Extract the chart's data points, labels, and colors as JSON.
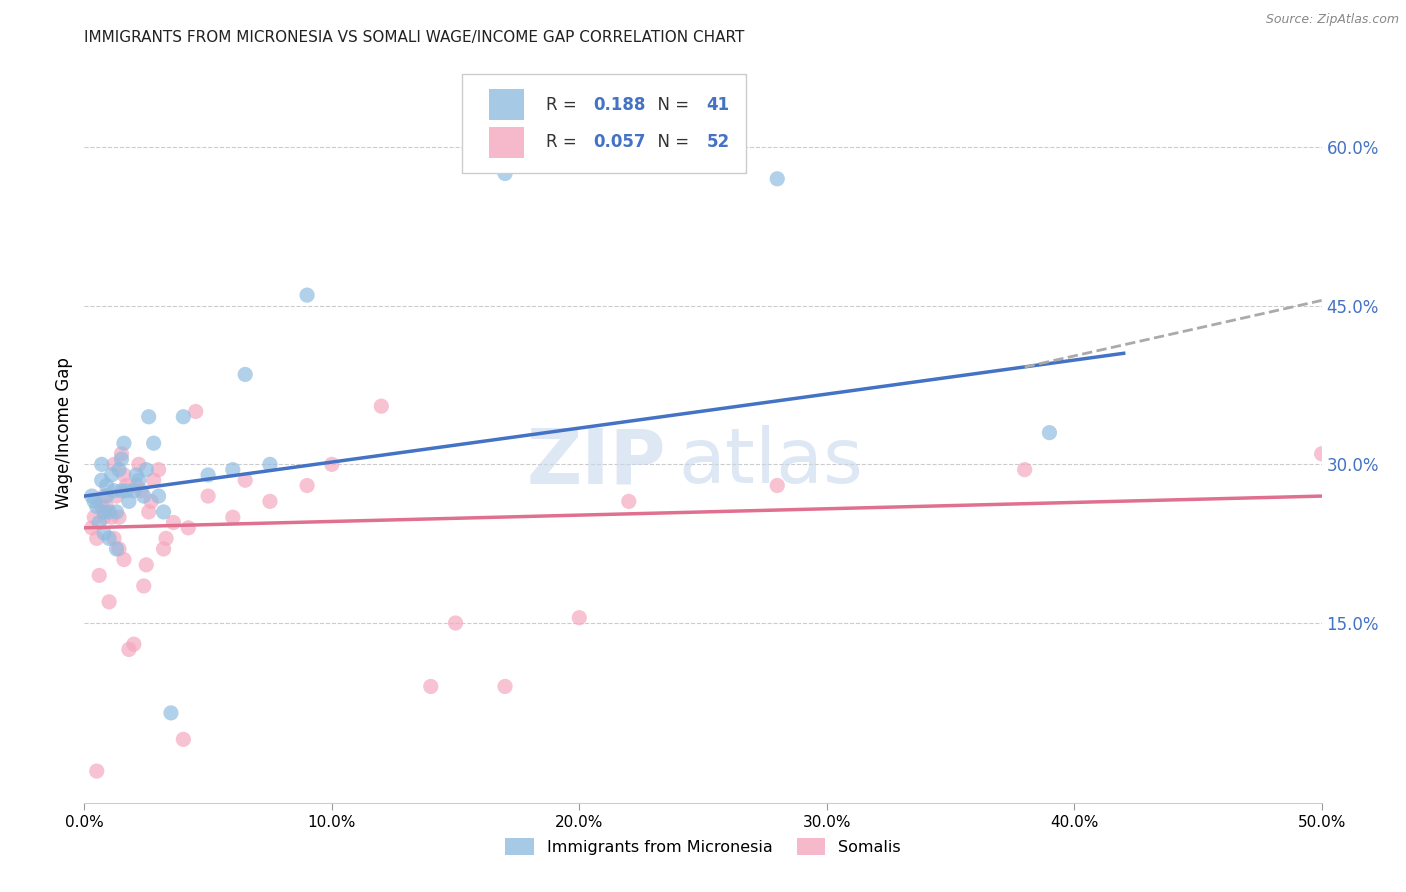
{
  "title": "IMMIGRANTS FROM MICRONESIA VS SOMALI WAGE/INCOME GAP CORRELATION CHART",
  "source": "Source: ZipAtlas.com",
  "ylabel": "Wage/Income Gap",
  "xlim": [
    0.0,
    0.5
  ],
  "ylim": [
    -0.02,
    0.68
  ],
  "xticks": [
    0.0,
    0.1,
    0.2,
    0.3,
    0.4,
    0.5
  ],
  "yticks_right": [
    0.15,
    0.3,
    0.45,
    0.6
  ],
  "grid_color": "#cccccc",
  "background_color": "#ffffff",
  "watermark_zip": "ZIP",
  "watermark_atlas": "atlas",
  "micronesia_color": "#90bce0",
  "somali_color": "#f4a8bf",
  "micronesia_R": "0.188",
  "micronesia_N": "41",
  "somali_R": "0.057",
  "somali_N": "52",
  "micronesia_line_color": "#4472c4",
  "somali_line_color": "#e07090",
  "dashed_color": "#aaaaaa",
  "blue_text_color": "#4472c4",
  "micronesia_line_x": [
    0.0,
    0.42
  ],
  "micronesia_line_y": [
    0.27,
    0.405
  ],
  "somali_line_x": [
    0.0,
    0.5
  ],
  "somali_line_y": [
    0.24,
    0.27
  ],
  "dashed_line_x": [
    0.38,
    0.5
  ],
  "dashed_line_y": [
    0.392,
    0.455
  ],
  "micronesia_x": [
    0.003,
    0.004,
    0.005,
    0.006,
    0.007,
    0.007,
    0.008,
    0.008,
    0.009,
    0.009,
    0.01,
    0.01,
    0.011,
    0.012,
    0.013,
    0.013,
    0.014,
    0.015,
    0.015,
    0.016,
    0.017,
    0.018,
    0.02,
    0.021,
    0.022,
    0.024,
    0.025,
    0.026,
    0.028,
    0.03,
    0.032,
    0.035,
    0.04,
    0.05,
    0.06,
    0.065,
    0.075,
    0.09,
    0.17,
    0.28,
    0.39
  ],
  "micronesia_y": [
    0.27,
    0.265,
    0.26,
    0.245,
    0.3,
    0.285,
    0.255,
    0.235,
    0.28,
    0.27,
    0.255,
    0.23,
    0.29,
    0.275,
    0.255,
    0.22,
    0.295,
    0.305,
    0.275,
    0.32,
    0.275,
    0.265,
    0.275,
    0.29,
    0.285,
    0.27,
    0.295,
    0.345,
    0.32,
    0.27,
    0.255,
    0.065,
    0.345,
    0.29,
    0.295,
    0.385,
    0.3,
    0.46,
    0.575,
    0.57,
    0.33
  ],
  "somali_x": [
    0.003,
    0.004,
    0.005,
    0.005,
    0.006,
    0.007,
    0.008,
    0.008,
    0.009,
    0.01,
    0.011,
    0.012,
    0.012,
    0.013,
    0.014,
    0.014,
    0.015,
    0.016,
    0.016,
    0.017,
    0.018,
    0.02,
    0.021,
    0.022,
    0.023,
    0.024,
    0.025,
    0.026,
    0.027,
    0.028,
    0.03,
    0.032,
    0.033,
    0.036,
    0.04,
    0.042,
    0.045,
    0.05,
    0.06,
    0.065,
    0.075,
    0.09,
    0.1,
    0.12,
    0.14,
    0.15,
    0.17,
    0.2,
    0.22,
    0.28,
    0.38,
    0.5
  ],
  "somali_y": [
    0.24,
    0.25,
    0.01,
    0.23,
    0.195,
    0.26,
    0.27,
    0.25,
    0.26,
    0.17,
    0.25,
    0.23,
    0.3,
    0.27,
    0.22,
    0.25,
    0.31,
    0.21,
    0.29,
    0.28,
    0.125,
    0.13,
    0.28,
    0.3,
    0.275,
    0.185,
    0.205,
    0.255,
    0.265,
    0.285,
    0.295,
    0.22,
    0.23,
    0.245,
    0.04,
    0.24,
    0.35,
    0.27,
    0.25,
    0.285,
    0.265,
    0.28,
    0.3,
    0.355,
    0.09,
    0.15,
    0.09,
    0.155,
    0.265,
    0.28,
    0.295,
    0.31
  ]
}
